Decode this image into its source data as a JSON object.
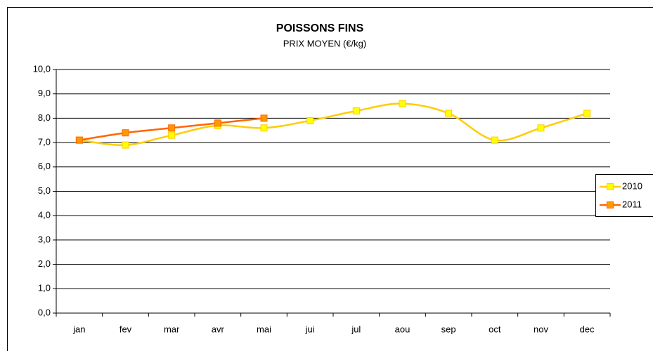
{
  "chart_data": {
    "type": "line",
    "title": "POISSONS FINS",
    "subtitle": "PRIX MOYEN (€/kg)",
    "categories": [
      "jan",
      "fev",
      "mar",
      "avr",
      "mai",
      "jui",
      "jul",
      "aou",
      "sep",
      "oct",
      "nov",
      "dec"
    ],
    "series": [
      {
        "name": "2010",
        "color": "#ffcc00",
        "marker_color": "#ffff00",
        "values": [
          7.1,
          6.9,
          7.3,
          7.7,
          7.6,
          7.9,
          8.3,
          8.6,
          8.2,
          7.1,
          7.6,
          8.2
        ]
      },
      {
        "name": "2011",
        "color": "#ff6600",
        "marker_color": "#ff9900",
        "values": [
          7.1,
          7.4,
          7.6,
          7.8,
          8.0,
          null,
          null,
          null,
          null,
          null,
          null,
          null
        ]
      }
    ],
    "ylim": [
      0,
      10
    ],
    "yticks": [
      {
        "value": 0,
        "label": "0,0"
      },
      {
        "value": 1,
        "label": "1,0"
      },
      {
        "value": 2,
        "label": "2,0"
      },
      {
        "value": 3,
        "label": "3,0"
      },
      {
        "value": 4,
        "label": "4,0"
      },
      {
        "value": 5,
        "label": "5,0"
      },
      {
        "value": 6,
        "label": "6,0"
      },
      {
        "value": 7,
        "label": "7,0"
      },
      {
        "value": 8,
        "label": "8,0"
      },
      {
        "value": 9,
        "label": "9,0"
      },
      {
        "value": 10,
        "label": "10,0"
      }
    ],
    "grid": true,
    "smooth": true,
    "legend": "right"
  }
}
